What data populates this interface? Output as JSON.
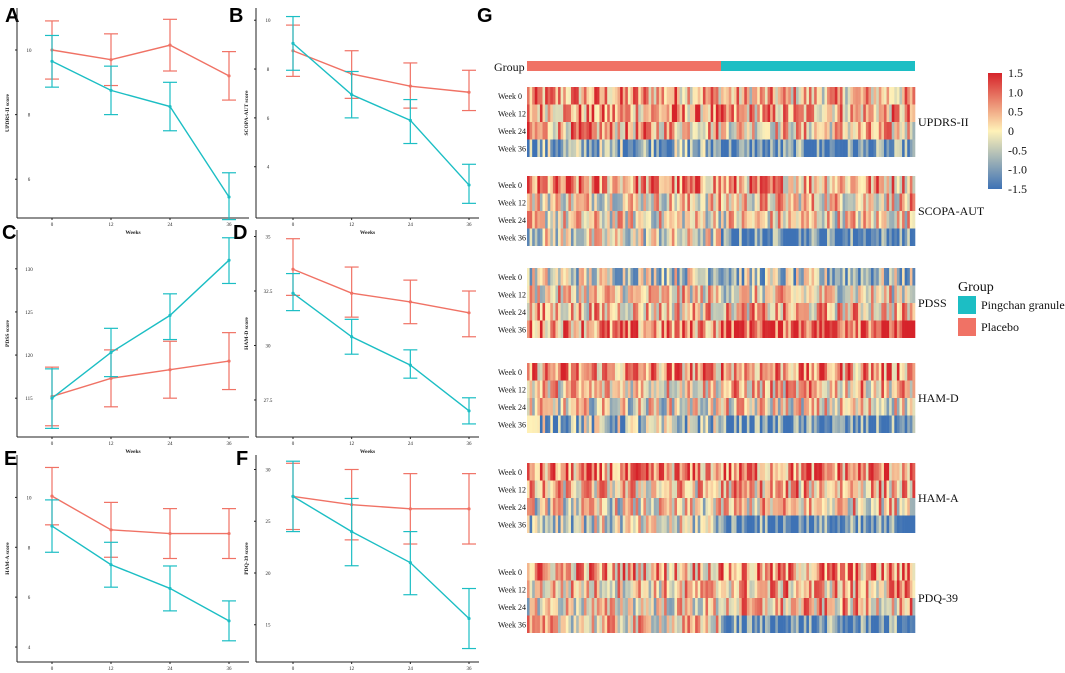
{
  "colors": {
    "placebo": "#F07265",
    "pingchan": "#1CBEC4",
    "hm_low": "#3E72B5",
    "hm_mid": "#FFF2B8",
    "hm_high": "#D6232A"
  },
  "line_charts": [
    {
      "letter": "A",
      "ylabel": "UPDRS-II score",
      "xlabel": "Weeks",
      "x": [
        0,
        12,
        24,
        36
      ],
      "yticks": [
        6,
        8,
        10
      ],
      "ylim": [
        4.8,
        11.3
      ],
      "series": [
        {
          "name": "Placebo",
          "values": [
            10.0,
            9.7,
            10.15,
            9.2
          ],
          "lo": [
            9.1,
            8.9,
            9.35,
            8.45
          ],
          "hi": [
            10.9,
            10.5,
            10.95,
            9.95
          ]
        },
        {
          "name": "Pingchan granule",
          "values": [
            9.65,
            8.75,
            8.25,
            5.45
          ],
          "lo": [
            8.85,
            8.0,
            7.5,
            4.75
          ],
          "hi": [
            10.45,
            9.5,
            9.0,
            6.2
          ]
        }
      ]
    },
    {
      "letter": "B",
      "ylabel": "SCOPA-AUT score",
      "xlabel": "Weeks",
      "x": [
        0,
        12,
        24,
        36
      ],
      "yticks": [
        4,
        6,
        8,
        10
      ],
      "ylim": [
        1.9,
        10.5
      ],
      "series": [
        {
          "name": "Placebo",
          "values": [
            8.75,
            7.8,
            7.3,
            7.05
          ],
          "lo": [
            7.7,
            6.8,
            6.4,
            6.3
          ],
          "hi": [
            9.8,
            8.75,
            8.25,
            7.95
          ]
        },
        {
          "name": "Pingchan granule",
          "values": [
            9.05,
            6.95,
            5.9,
            3.25
          ],
          "lo": [
            7.95,
            6.0,
            4.95,
            2.5
          ],
          "hi": [
            10.15,
            7.9,
            6.75,
            4.1
          ]
        }
      ]
    },
    {
      "letter": "C",
      "ylabel": "PDSS score",
      "xlabel": "Weeks",
      "x": [
        0,
        12,
        24,
        36
      ],
      "yticks": [
        115,
        120,
        125,
        130
      ],
      "ylim": [
        110.5,
        134.5
      ],
      "series": [
        {
          "name": "Placebo",
          "values": [
            115.2,
            117.3,
            118.3,
            119.3
          ],
          "lo": [
            111.8,
            114.0,
            115.0,
            116.0
          ],
          "hi": [
            118.6,
            120.6,
            121.6,
            122.6
          ]
        },
        {
          "name": "Pingchan granule",
          "values": [
            115.0,
            120.3,
            124.6,
            131.0
          ],
          "lo": [
            111.5,
            117.5,
            121.8,
            128.3
          ],
          "hi": [
            118.4,
            123.1,
            127.1,
            133.6
          ]
        }
      ]
    },
    {
      "letter": "D",
      "ylabel": "HAM-D score",
      "xlabel": "Weeks",
      "x": [
        0,
        12,
        24,
        36
      ],
      "yticks": [
        27.5,
        30.0,
        32.5,
        35.0
      ],
      "ylim": [
        25.8,
        35.3
      ],
      "series": [
        {
          "name": "Placebo",
          "values": [
            33.5,
            32.4,
            32.0,
            31.5
          ],
          "lo": [
            32.3,
            31.3,
            31.0,
            30.4
          ],
          "hi": [
            34.9,
            33.6,
            33.0,
            32.5
          ]
        },
        {
          "name": "Pingchan granule",
          "values": [
            32.4,
            30.4,
            29.1,
            27.0
          ],
          "lo": [
            31.6,
            29.6,
            28.5,
            26.4
          ],
          "hi": [
            33.3,
            31.2,
            29.8,
            27.6
          ]
        }
      ]
    },
    {
      "letter": "E",
      "ylabel": "HAM-A score",
      "xlabel": "Weeks",
      "x": [
        0,
        12,
        24,
        36
      ],
      "yticks": [
        4,
        6,
        8,
        10
      ],
      "ylim": [
        3.4,
        11.7
      ],
      "series": [
        {
          "name": "Placebo",
          "values": [
            10.05,
            8.7,
            8.55,
            8.55
          ],
          "lo": [
            8.9,
            7.6,
            7.55,
            7.55
          ],
          "hi": [
            11.2,
            9.8,
            9.55,
            9.55
          ]
        },
        {
          "name": "Pingchan granule",
          "values": [
            8.85,
            7.3,
            6.35,
            5.05
          ],
          "lo": [
            7.8,
            6.4,
            5.45,
            4.25
          ],
          "hi": [
            9.9,
            8.2,
            7.25,
            5.85
          ]
        }
      ]
    },
    {
      "letter": "F",
      "ylabel": "PDQ-39 score",
      "xlabel": "Weeks",
      "x": [
        0,
        12,
        24,
        36
      ],
      "yticks": [
        15,
        20,
        25,
        30
      ],
      "ylim": [
        11.4,
        31.4
      ],
      "series": [
        {
          "name": "Placebo",
          "values": [
            27.4,
            26.6,
            26.2,
            26.2
          ],
          "lo": [
            24.2,
            23.2,
            22.8,
            22.8
          ],
          "hi": [
            30.6,
            30.0,
            29.6,
            29.6
          ]
        },
        {
          "name": "Pingchan granule",
          "values": [
            27.4,
            24.0,
            21.0,
            15.6
          ],
          "lo": [
            24.0,
            20.7,
            17.9,
            12.7
          ],
          "hi": [
            30.8,
            27.2,
            24.0,
            18.5
          ]
        }
      ]
    }
  ],
  "heatmap": {
    "letter": "G",
    "group_label": "Group",
    "row_labels": [
      "Week 0",
      "Week 12",
      "Week 24",
      "Week 36"
    ],
    "blocks": [
      {
        "name": "UPDRS-II",
        "p": [
          [
            0.55,
            0.55,
            0.45,
            -0.85
          ],
          [
            0.3,
            0.45,
            0.2,
            -1.3
          ]
        ]
      },
      {
        "name": "SCOPA-AUT",
        "p": [
          [
            0.6,
            0.1,
            0.0,
            -0.2
          ],
          [
            0.5,
            0.2,
            0.1,
            -1.3
          ]
        ]
      },
      {
        "name": "PDSS",
        "p": [
          [
            -0.3,
            0.1,
            0.3,
            0.7
          ],
          [
            -0.6,
            0.0,
            0.3,
            1.3
          ]
        ]
      },
      {
        "name": "HAM-D",
        "p": [
          [
            0.6,
            0.2,
            -0.1,
            -0.6
          ],
          [
            0.7,
            0.3,
            0.0,
            -1.3
          ]
        ]
      },
      {
        "name": "HAM-A",
        "p": [
          [
            0.6,
            0.2,
            -0.1,
            -0.3
          ],
          [
            0.7,
            0.4,
            0.2,
            -1.3
          ]
        ]
      },
      {
        "name": "PDQ-39",
        "p": [
          [
            0.5,
            0.2,
            0.0,
            0.1
          ],
          [
            0.6,
            0.4,
            0.3,
            -1.3
          ]
        ]
      }
    ],
    "colorbar": {
      "ticks": [
        "1.5",
        "1.0",
        "0.5",
        "0",
        "-0.5",
        "-1.0",
        "-1.5"
      ],
      "values": [
        1.5,
        1.0,
        0.5,
        0,
        -0.5,
        -1.0,
        -1.5
      ]
    },
    "legend": {
      "title": "Group",
      "items": [
        {
          "label": "Pingchan granule",
          "color_key": "pingchan"
        },
        {
          "label": "Placebo",
          "color_key": "placebo"
        }
      ]
    }
  }
}
